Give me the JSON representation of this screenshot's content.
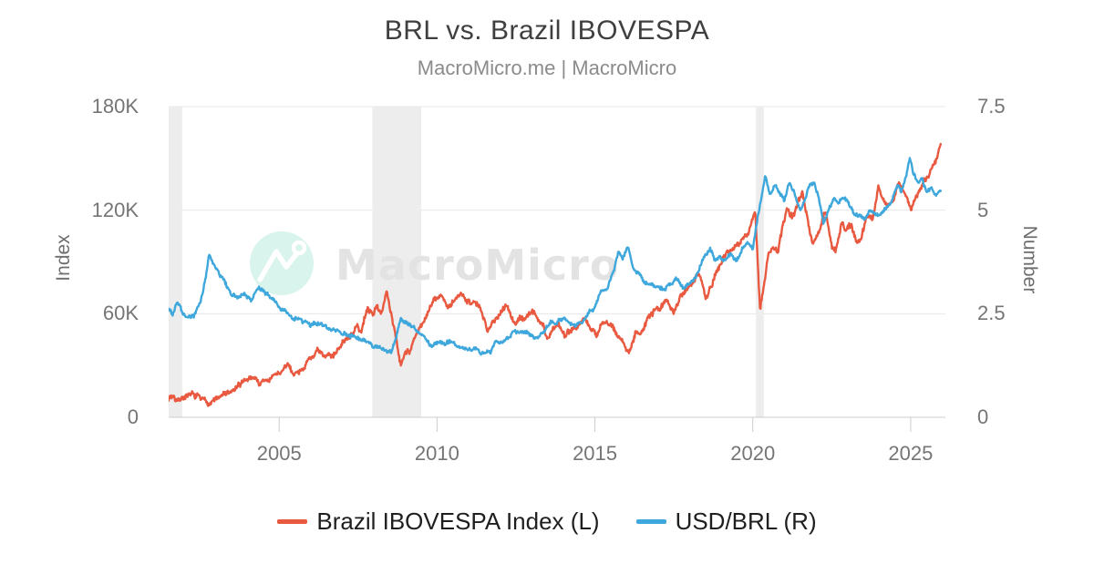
{
  "header": {
    "title": "BRL vs. Brazil IBOVESPA",
    "subtitle": "MacroMicro.me | MacroMicro"
  },
  "watermark": {
    "text": "MacroMicro",
    "logo_icon": "macromicro-trendline-magnifier-logo",
    "circle_color": "#d9f4ec",
    "glyph_color": "#ffffff",
    "text_color": "#e3e3e3"
  },
  "colors": {
    "background": "#ffffff",
    "title": "#3f3f3f",
    "subtitle": "#8b8b8b",
    "tick_label": "#757575",
    "axis_title": "#6e6e6e",
    "grid": "#e7e7e7",
    "axis_line": "#cdcdcd",
    "recession_band": "#ededed",
    "legend_text": "#1f1f1f",
    "ibovespa": "#E8593F",
    "usdbrl": "#3EA7DC"
  },
  "legend": [
    {
      "label": "Brazil IBOVESPA Index (L)",
      "color": "#E8593F"
    },
    {
      "label": "USD/BRL (R)",
      "color": "#3EA7DC"
    }
  ],
  "chart_data": {
    "type": "line",
    "title": "BRL vs. Brazil IBOVESPA",
    "grid": "horizontal-only",
    "legend_position": "bottom-center",
    "x_range": [
      2001.5,
      2026.1
    ],
    "x_ticks": [
      "2005",
      "2010",
      "2015",
      "2020",
      "2025"
    ],
    "x_tick_years": [
      2005,
      2010,
      2015,
      2020,
      2025
    ],
    "y_left": {
      "label": "Index",
      "range": [
        0,
        180000
      ],
      "ticks": [
        "0",
        "60K",
        "120K",
        "180K"
      ],
      "tick_values": [
        0,
        60000,
        120000,
        180000
      ]
    },
    "y_right": {
      "label": "Number",
      "range": [
        0,
        7.5
      ],
      "ticks": [
        "0",
        "2.5",
        "5",
        "7.5"
      ],
      "tick_values": [
        0,
        2.5,
        5,
        7.5
      ]
    },
    "recession_bands": [
      [
        2001.5,
        2001.93
      ],
      [
        2007.95,
        2009.5
      ],
      [
        2020.1,
        2020.35
      ]
    ],
    "texture_noise": {
      "ibovespa": 2400,
      "usdbrl": 0.065
    },
    "series": [
      {
        "name": "Brazil IBOVESPA Index (L)",
        "axis": "left",
        "color": "#E8593F",
        "points": [
          [
            2001.5,
            11500
          ],
          [
            2001.65,
            12500
          ],
          [
            2001.8,
            11000
          ],
          [
            2002.0,
            13200
          ],
          [
            2002.2,
            12300
          ],
          [
            2002.45,
            11000
          ],
          [
            2002.6,
            9800
          ],
          [
            2002.8,
            8800
          ],
          [
            2003.0,
            10500
          ],
          [
            2003.25,
            12800
          ],
          [
            2003.5,
            14500
          ],
          [
            2003.75,
            17500
          ],
          [
            2003.95,
            22000
          ],
          [
            2004.15,
            23500
          ],
          [
            2004.4,
            19800
          ],
          [
            2004.65,
            21500
          ],
          [
            2004.9,
            24500
          ],
          [
            2005.1,
            26500
          ],
          [
            2005.25,
            29500
          ],
          [
            2005.45,
            25500
          ],
          [
            2005.65,
            27500
          ],
          [
            2005.85,
            31500
          ],
          [
            2006.05,
            35500
          ],
          [
            2006.2,
            38500
          ],
          [
            2006.45,
            33500
          ],
          [
            2006.7,
            36500
          ],
          [
            2006.9,
            41500
          ],
          [
            2007.1,
            44500
          ],
          [
            2007.25,
            46500
          ],
          [
            2007.45,
            53000
          ],
          [
            2007.6,
            49500
          ],
          [
            2007.8,
            63000
          ],
          [
            2007.95,
            60000
          ],
          [
            2008.1,
            64000
          ],
          [
            2008.25,
            61000
          ],
          [
            2008.4,
            73000
          ],
          [
            2008.55,
            59000
          ],
          [
            2008.7,
            47000
          ],
          [
            2008.85,
            31000
          ],
          [
            2009.0,
            40000
          ],
          [
            2009.15,
            39000
          ],
          [
            2009.35,
            48000
          ],
          [
            2009.55,
            53000
          ],
          [
            2009.75,
            63000
          ],
          [
            2009.95,
            68000
          ],
          [
            2010.15,
            70500
          ],
          [
            2010.35,
            63500
          ],
          [
            2010.55,
            66000
          ],
          [
            2010.75,
            70500
          ],
          [
            2010.95,
            69500
          ],
          [
            2011.15,
            67500
          ],
          [
            2011.35,
            63500
          ],
          [
            2011.6,
            48500
          ],
          [
            2011.75,
            56500
          ],
          [
            2011.9,
            58500
          ],
          [
            2012.1,
            64500
          ],
          [
            2012.2,
            66500
          ],
          [
            2012.45,
            53500
          ],
          [
            2012.6,
            57500
          ],
          [
            2012.8,
            58000
          ],
          [
            2013.0,
            61500
          ],
          [
            2013.2,
            56000
          ],
          [
            2013.35,
            54500
          ],
          [
            2013.5,
            46000
          ],
          [
            2013.65,
            50500
          ],
          [
            2013.85,
            54500
          ],
          [
            2014.05,
            47500
          ],
          [
            2014.25,
            51500
          ],
          [
            2014.45,
            53500
          ],
          [
            2014.65,
            58500
          ],
          [
            2014.85,
            51500
          ],
          [
            2015.05,
            47500
          ],
          [
            2015.2,
            54500
          ],
          [
            2015.4,
            53500
          ],
          [
            2015.6,
            50500
          ],
          [
            2015.8,
            45500
          ],
          [
            2016.07,
            38500
          ],
          [
            2016.3,
            50500
          ],
          [
            2016.5,
            51500
          ],
          [
            2016.7,
            58000
          ],
          [
            2016.9,
            61500
          ],
          [
            2017.1,
            64500
          ],
          [
            2017.3,
            66500
          ],
          [
            2017.5,
            61500
          ],
          [
            2017.7,
            70500
          ],
          [
            2017.9,
            74500
          ],
          [
            2018.1,
            79500
          ],
          [
            2018.3,
            85500
          ],
          [
            2018.5,
            71500
          ],
          [
            2018.7,
            76500
          ],
          [
            2018.9,
            87500
          ],
          [
            2019.1,
            94500
          ],
          [
            2019.3,
            96500
          ],
          [
            2019.5,
            100500
          ],
          [
            2019.7,
            102000
          ],
          [
            2019.9,
            108000
          ],
          [
            2020.08,
            119000
          ],
          [
            2020.23,
            63500
          ],
          [
            2020.35,
            78500
          ],
          [
            2020.5,
            94500
          ],
          [
            2020.65,
            99500
          ],
          [
            2020.8,
            95500
          ],
          [
            2020.95,
            110000
          ],
          [
            2021.1,
            119500
          ],
          [
            2021.25,
            116000
          ],
          [
            2021.45,
            125500
          ],
          [
            2021.57,
            130000
          ],
          [
            2021.75,
            113500
          ],
          [
            2021.9,
            101500
          ],
          [
            2022.05,
            106500
          ],
          [
            2022.3,
            120000
          ],
          [
            2022.5,
            99500
          ],
          [
            2022.62,
            96500
          ],
          [
            2022.8,
            113000
          ],
          [
            2022.95,
            109500
          ],
          [
            2023.1,
            112500
          ],
          [
            2023.3,
            101500
          ],
          [
            2023.45,
            104500
          ],
          [
            2023.6,
            117500
          ],
          [
            2023.8,
            115500
          ],
          [
            2023.97,
            134000
          ],
          [
            2024.1,
            128500
          ],
          [
            2024.27,
            121500
          ],
          [
            2024.45,
            127000
          ],
          [
            2024.6,
            136500
          ],
          [
            2024.75,
            131500
          ],
          [
            2024.9,
            126500
          ],
          [
            2025.02,
            120500
          ],
          [
            2025.15,
            127500
          ],
          [
            2025.3,
            132500
          ],
          [
            2025.45,
            137500
          ],
          [
            2025.6,
            141000
          ],
          [
            2025.73,
            145500
          ],
          [
            2025.85,
            149500
          ],
          [
            2025.95,
            157000
          ]
        ]
      },
      {
        "name": "USD/BRL (R)",
        "axis": "right",
        "color": "#3EA7DC",
        "points": [
          [
            2001.5,
            2.62
          ],
          [
            2001.62,
            2.48
          ],
          [
            2001.78,
            2.82
          ],
          [
            2001.95,
            2.5
          ],
          [
            2002.1,
            2.38
          ],
          [
            2002.3,
            2.45
          ],
          [
            2002.5,
            2.85
          ],
          [
            2002.65,
            3.35
          ],
          [
            2002.78,
            3.95
          ],
          [
            2002.95,
            3.65
          ],
          [
            2003.1,
            3.45
          ],
          [
            2003.3,
            3.2
          ],
          [
            2003.45,
            2.95
          ],
          [
            2003.7,
            2.88
          ],
          [
            2003.9,
            2.95
          ],
          [
            2004.1,
            2.88
          ],
          [
            2004.35,
            3.12
          ],
          [
            2004.6,
            3.0
          ],
          [
            2004.85,
            2.78
          ],
          [
            2005.1,
            2.6
          ],
          [
            2005.3,
            2.5
          ],
          [
            2005.55,
            2.38
          ],
          [
            2005.8,
            2.28
          ],
          [
            2006.05,
            2.22
          ],
          [
            2006.3,
            2.32
          ],
          [
            2006.55,
            2.16
          ],
          [
            2006.8,
            2.15
          ],
          [
            2007.05,
            2.06
          ],
          [
            2007.3,
            1.96
          ],
          [
            2007.6,
            1.87
          ],
          [
            2007.9,
            1.77
          ],
          [
            2008.1,
            1.72
          ],
          [
            2008.3,
            1.67
          ],
          [
            2008.55,
            1.58
          ],
          [
            2008.7,
            1.92
          ],
          [
            2008.85,
            2.38
          ],
          [
            2009.0,
            2.32
          ],
          [
            2009.2,
            2.26
          ],
          [
            2009.4,
            2.05
          ],
          [
            2009.6,
            1.92
          ],
          [
            2009.8,
            1.73
          ],
          [
            2010.0,
            1.79
          ],
          [
            2010.2,
            1.76
          ],
          [
            2010.4,
            1.81
          ],
          [
            2010.6,
            1.74
          ],
          [
            2010.8,
            1.7
          ],
          [
            2011.0,
            1.66
          ],
          [
            2011.2,
            1.62
          ],
          [
            2011.5,
            1.56
          ],
          [
            2011.7,
            1.64
          ],
          [
            2011.85,
            1.86
          ],
          [
            2012.0,
            1.75
          ],
          [
            2012.2,
            1.84
          ],
          [
            2012.45,
            2.07
          ],
          [
            2012.6,
            2.02
          ],
          [
            2012.8,
            2.06
          ],
          [
            2013.0,
            1.99
          ],
          [
            2013.2,
            1.97
          ],
          [
            2013.45,
            2.16
          ],
          [
            2013.6,
            2.32
          ],
          [
            2013.8,
            2.24
          ],
          [
            2014.0,
            2.4
          ],
          [
            2014.2,
            2.24
          ],
          [
            2014.4,
            2.21
          ],
          [
            2014.6,
            2.32
          ],
          [
            2014.8,
            2.52
          ],
          [
            2015.0,
            2.68
          ],
          [
            2015.2,
            3.05
          ],
          [
            2015.4,
            3.12
          ],
          [
            2015.6,
            3.55
          ],
          [
            2015.75,
            4.05
          ],
          [
            2015.88,
            3.85
          ],
          [
            2016.05,
            4.15
          ],
          [
            2016.2,
            3.62
          ],
          [
            2016.4,
            3.46
          ],
          [
            2016.6,
            3.26
          ],
          [
            2016.8,
            3.2
          ],
          [
            2017.0,
            3.14
          ],
          [
            2017.2,
            3.08
          ],
          [
            2017.4,
            3.26
          ],
          [
            2017.6,
            3.32
          ],
          [
            2017.8,
            3.16
          ],
          [
            2018.0,
            3.26
          ],
          [
            2018.2,
            3.42
          ],
          [
            2018.45,
            3.88
          ],
          [
            2018.65,
            4.12
          ],
          [
            2018.8,
            3.76
          ],
          [
            2018.95,
            3.88
          ],
          [
            2019.1,
            3.76
          ],
          [
            2019.3,
            3.96
          ],
          [
            2019.5,
            3.76
          ],
          [
            2019.7,
            4.1
          ],
          [
            2019.85,
            4.16
          ],
          [
            2020.0,
            4.06
          ],
          [
            2020.15,
            4.8
          ],
          [
            2020.28,
            5.3
          ],
          [
            2020.4,
            5.85
          ],
          [
            2020.55,
            5.32
          ],
          [
            2020.7,
            5.62
          ],
          [
            2020.85,
            5.42
          ],
          [
            2021.0,
            5.22
          ],
          [
            2021.15,
            5.72
          ],
          [
            2021.3,
            5.45
          ],
          [
            2021.5,
            5.0
          ],
          [
            2021.65,
            5.26
          ],
          [
            2021.8,
            5.6
          ],
          [
            2021.95,
            5.7
          ],
          [
            2022.1,
            5.25
          ],
          [
            2022.25,
            4.66
          ],
          [
            2022.4,
            5.02
          ],
          [
            2022.55,
            5.26
          ],
          [
            2022.7,
            5.16
          ],
          [
            2022.85,
            5.36
          ],
          [
            2023.0,
            5.22
          ],
          [
            2023.2,
            4.96
          ],
          [
            2023.4,
            4.86
          ],
          [
            2023.55,
            4.78
          ],
          [
            2023.7,
            4.96
          ],
          [
            2023.85,
            4.9
          ],
          [
            2024.0,
            4.86
          ],
          [
            2024.2,
            5.0
          ],
          [
            2024.35,
            5.16
          ],
          [
            2024.5,
            5.42
          ],
          [
            2024.6,
            5.62
          ],
          [
            2024.7,
            5.46
          ],
          [
            2024.85,
            5.82
          ],
          [
            2024.97,
            6.25
          ],
          [
            2025.1,
            5.86
          ],
          [
            2025.2,
            5.7
          ],
          [
            2025.35,
            5.76
          ],
          [
            2025.5,
            5.46
          ],
          [
            2025.65,
            5.56
          ],
          [
            2025.8,
            5.3
          ],
          [
            2025.95,
            5.4
          ]
        ]
      }
    ]
  }
}
